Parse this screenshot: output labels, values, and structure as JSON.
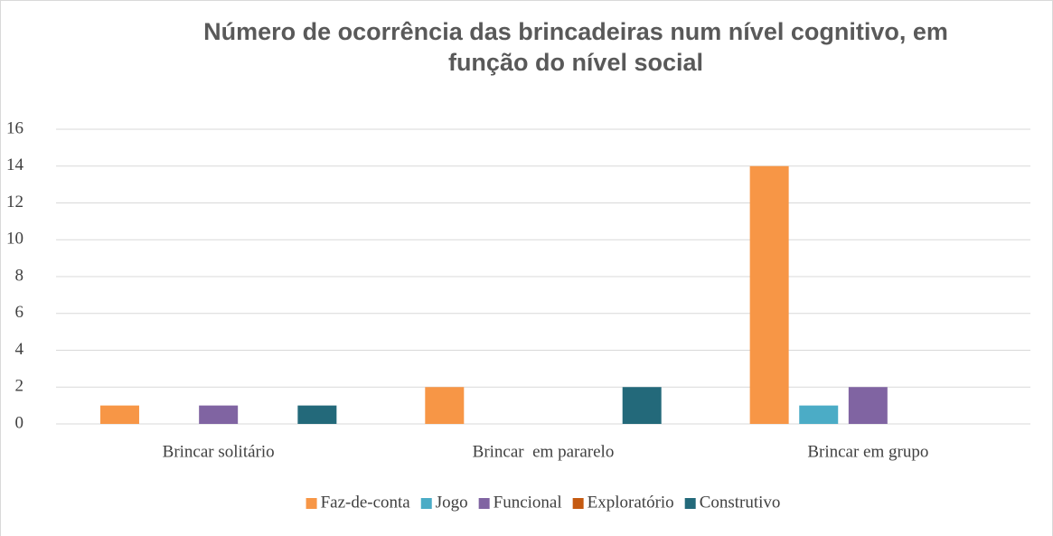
{
  "chart_data": {
    "type": "bar",
    "title": [
      "Número de ocorrência das brincadeiras num nível cognitivo, em",
      "função do nível social"
    ],
    "categories": [
      "Brincar solitário",
      "Brincar  em pararelo",
      "Brincar em grupo"
    ],
    "series": [
      {
        "name": "Faz-de-conta",
        "color": "#f79646",
        "values": [
          1,
          2,
          14
        ]
      },
      {
        "name": "Jogo",
        "color": "#4bacc6",
        "values": [
          0,
          0,
          1
        ]
      },
      {
        "name": "Funcional",
        "color": "#8064a2",
        "values": [
          1,
          0,
          2
        ]
      },
      {
        "name": "Exploratório",
        "color": "#c55a11",
        "values": [
          0,
          0,
          0
        ]
      },
      {
        "name": "Construtivo",
        "color": "#23697a",
        "values": [
          1,
          2,
          0
        ]
      }
    ],
    "ylim": [
      0,
      16
    ],
    "yticks": [
      0,
      2,
      4,
      6,
      8,
      10,
      12,
      14,
      16
    ],
    "grid": true,
    "legend": "bottom"
  }
}
